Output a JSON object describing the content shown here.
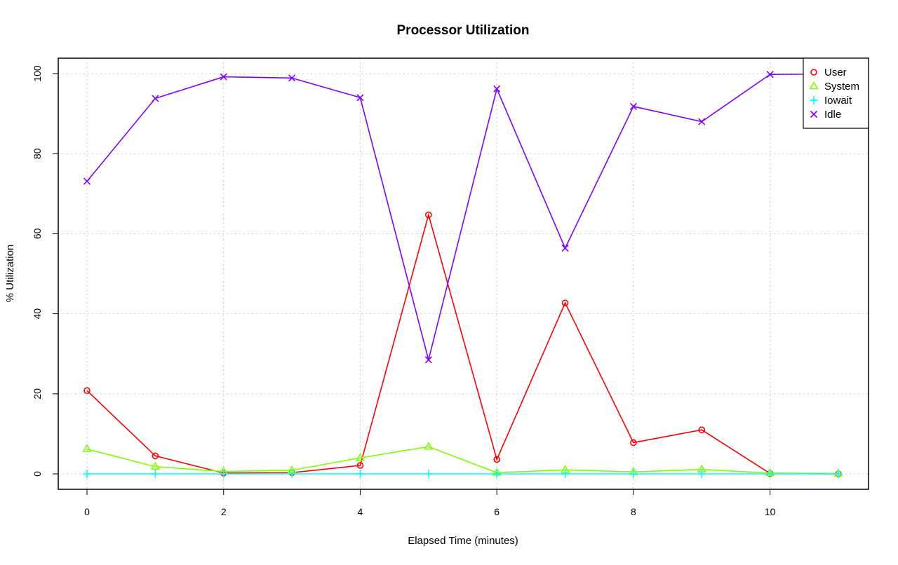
{
  "chart_data": {
    "type": "line",
    "title": "Processor Utilization",
    "xlabel": "Elapsed Time (minutes)",
    "ylabel": "% Utilization",
    "xlim": [
      0,
      11
    ],
    "ylim": [
      0,
      100
    ],
    "x_ticks": [
      0,
      2,
      4,
      6,
      8,
      10
    ],
    "y_ticks": [
      0,
      20,
      40,
      60,
      80,
      100
    ],
    "grid": true,
    "legend_position": "top-right",
    "x": [
      0,
      1,
      2,
      3,
      4,
      5,
      6,
      7,
      8,
      9,
      10,
      11
    ],
    "series": [
      {
        "name": "User",
        "color": "#ff0000",
        "marker": "circle",
        "values": [
          20.8,
          4.5,
          0.2,
          0.3,
          2.1,
          64.7,
          3.6,
          42.7,
          7.8,
          11.0,
          0.1,
          0.0
        ]
      },
      {
        "name": "System",
        "color": "#80ff00",
        "marker": "triangle",
        "values": [
          6.2,
          1.8,
          0.6,
          0.9,
          4.0,
          6.8,
          0.3,
          1.0,
          0.5,
          1.1,
          0.2,
          0.1
        ]
      },
      {
        "name": "Iowait",
        "color": "#00ffff",
        "marker": "plus",
        "values": [
          0,
          0,
          0,
          0,
          0,
          0,
          0,
          0,
          0,
          0,
          0,
          0
        ]
      },
      {
        "name": "Idle",
        "color": "#8000ff",
        "marker": "x",
        "values": [
          73.1,
          93.8,
          99.2,
          98.9,
          94.0,
          28.5,
          96.2,
          56.4,
          91.8,
          88.0,
          99.8,
          99.9
        ]
      }
    ]
  }
}
